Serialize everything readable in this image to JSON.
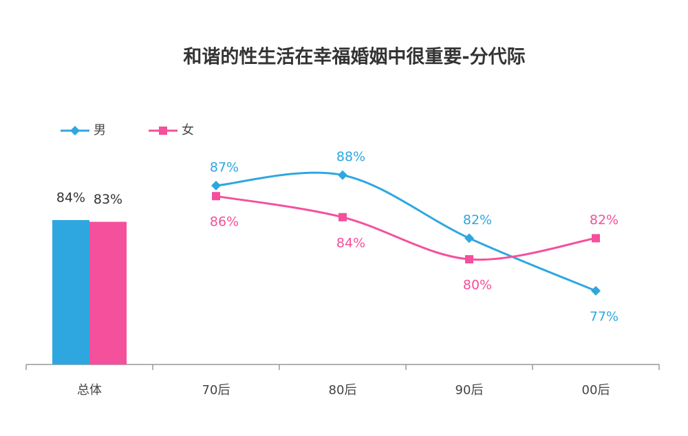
{
  "title": "和谐的性生活在幸福婚姻中很重要-分代际",
  "chart_data": [
    {
      "type": "bar",
      "categories": [
        "总体"
      ],
      "ylim": [
        0,
        100
      ],
      "series": [
        {
          "color": "#2ea7e0",
          "values": [
            84
          ],
          "value_labels": [
            "84%"
          ]
        },
        {
          "color": "#f4509c",
          "values": [
            83
          ],
          "value_labels": [
            "83%"
          ]
        }
      ]
    },
    {
      "type": "line",
      "categories": [
        "70后",
        "80后",
        "90后",
        "00后"
      ],
      "ylim": [
        70,
        90
      ],
      "smooth": true,
      "legend": "top-left",
      "series": [
        {
          "name": "男",
          "color": "#2ea7e0",
          "marker": "diamond",
          "values": [
            87,
            88,
            82,
            77
          ],
          "value_labels": [
            "87%",
            "88%",
            "82%",
            "77%"
          ]
        },
        {
          "name": "女",
          "color": "#f4509c",
          "marker": "square",
          "values": [
            86,
            84,
            80,
            82
          ],
          "value_labels": [
            "86%",
            "84%",
            "80%",
            "82%"
          ]
        }
      ]
    }
  ]
}
